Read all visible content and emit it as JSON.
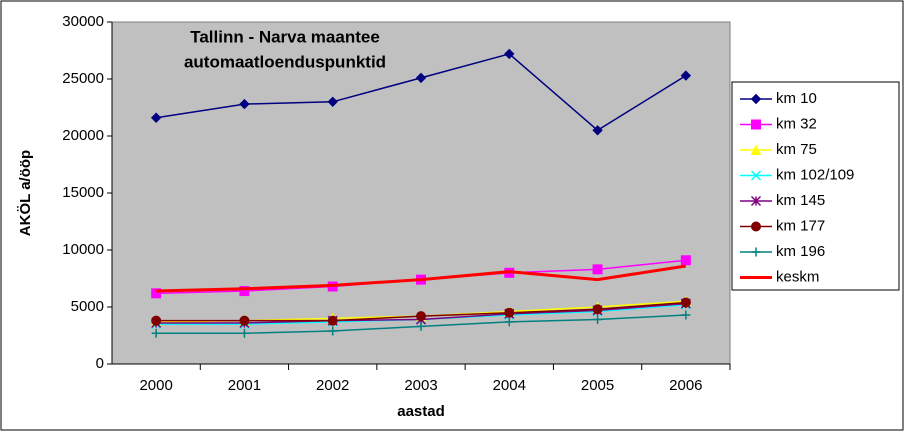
{
  "chart_data": {
    "type": "line",
    "title": [
      "Tallinn - Narva maantee",
      "automaatloenduspunktid"
    ],
    "x_label": "aastad",
    "y_label": "AKÖL a/ööp",
    "categories": [
      "2000",
      "2001",
      "2002",
      "2003",
      "2004",
      "2005",
      "2006"
    ],
    "ylim": [
      0,
      30000
    ],
    "yticks": [
      0,
      5000,
      10000,
      15000,
      20000,
      25000,
      30000
    ],
    "grid": false,
    "legend": "right",
    "series": [
      {
        "name": "km 10",
        "color": "#000080",
        "marker": "diamond",
        "values": [
          21600,
          22800,
          23000,
          25100,
          27200,
          20500,
          25300
        ]
      },
      {
        "name": "km 32",
        "color": "#ff00ff",
        "marker": "square",
        "values": [
          6200,
          6400,
          6800,
          7400,
          8000,
          8300,
          9100
        ]
      },
      {
        "name": "km 75",
        "color": "#ffff00",
        "marker": "triangle",
        "values": [
          3700,
          3800,
          4000,
          4200,
          4600,
          5000,
          5500
        ]
      },
      {
        "name": "km 102/109",
        "color": "#00ffff",
        "marker": "x",
        "values": [
          3500,
          3500,
          3700,
          3900,
          4300,
          4600,
          5200
        ]
      },
      {
        "name": "km 145",
        "color": "#800080",
        "marker": "star",
        "values": [
          3600,
          3600,
          3800,
          3900,
          4400,
          4700,
          5300
        ]
      },
      {
        "name": "km 177",
        "color": "#800000",
        "marker": "circle",
        "values": [
          3800,
          3800,
          3800,
          4200,
          4500,
          4800,
          5400
        ]
      },
      {
        "name": "km 196",
        "color": "#008080",
        "marker": "plus",
        "values": [
          2700,
          2700,
          2900,
          3300,
          3700,
          3900,
          4300
        ]
      },
      {
        "name": "keskm",
        "color": "#ff0000",
        "marker": "none",
        "values": [
          6400,
          6600,
          6900,
          7400,
          8100,
          7400,
          8600
        ]
      }
    ]
  }
}
